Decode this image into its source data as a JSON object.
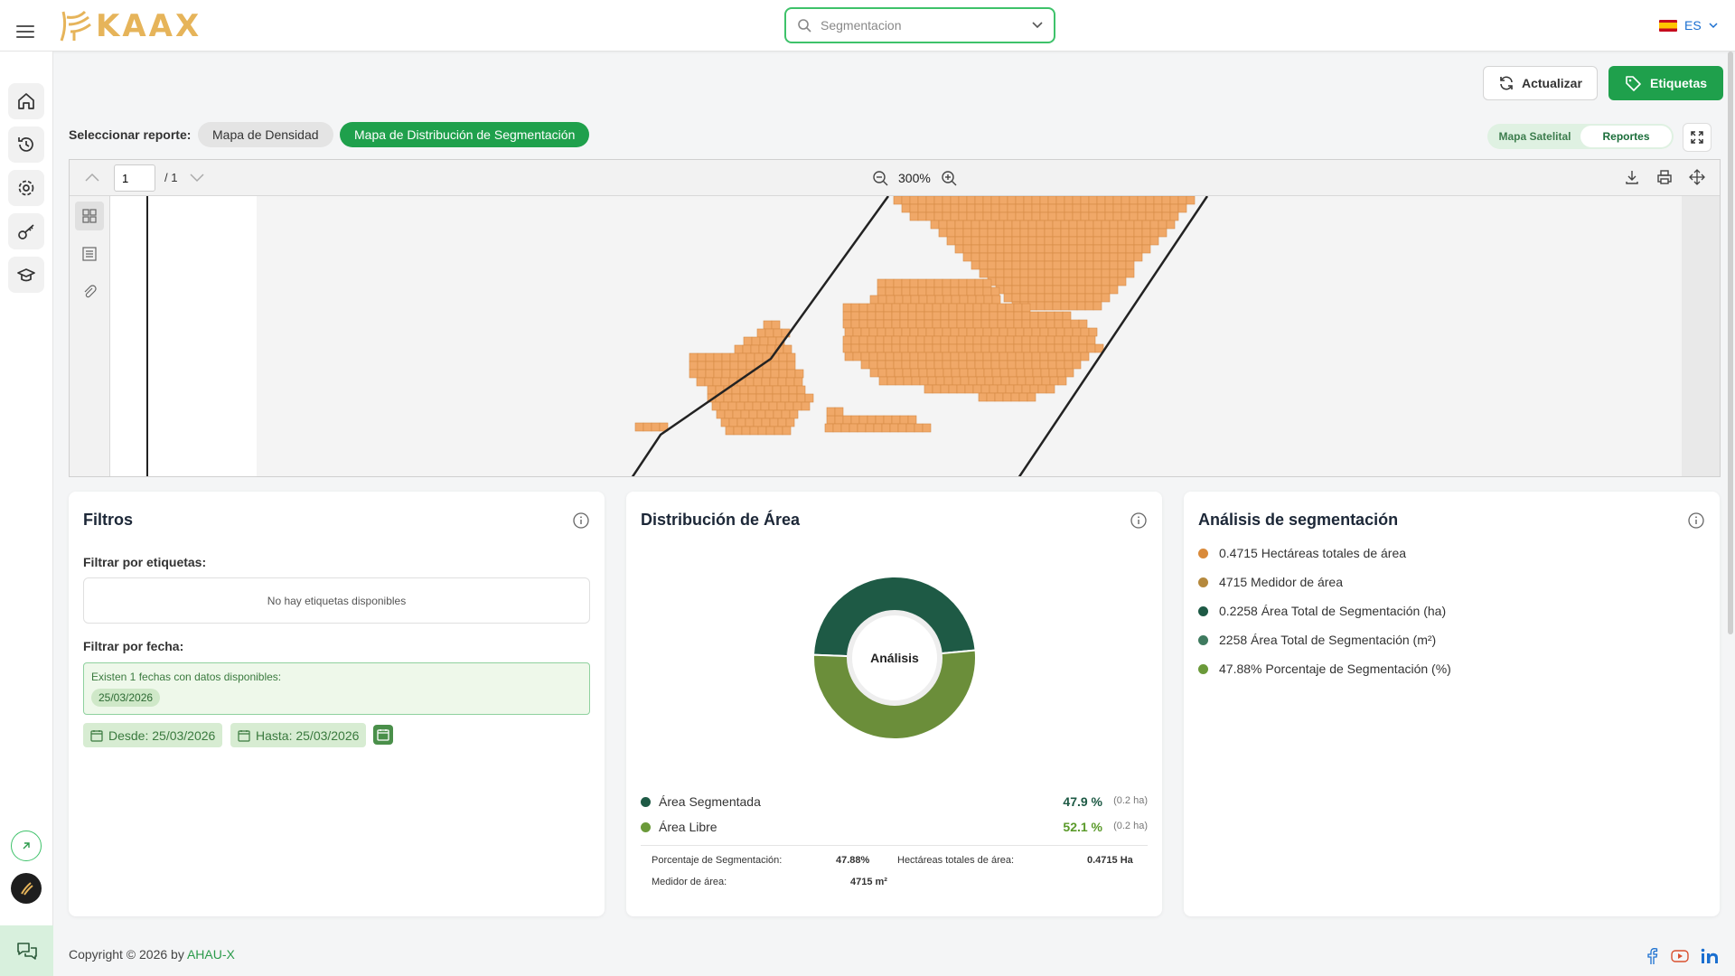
{
  "header": {
    "logo_text": "KAAX",
    "search_placeholder": "Segmentacion",
    "language": "ES"
  },
  "sidebar": {
    "items": [
      {
        "icon": "home-icon"
      },
      {
        "icon": "history-icon"
      },
      {
        "icon": "gear-icon"
      },
      {
        "icon": "key-icon"
      },
      {
        "icon": "graduation-cap-icon"
      }
    ]
  },
  "toolbar": {
    "update_label": "Actualizar",
    "labels_label": "Etiquetas"
  },
  "report_selector": {
    "label": "Seleccionar reporte:",
    "options": [
      "Mapa de Densidad",
      "Mapa de Distribución de Segmentación"
    ],
    "selected": "Mapa de Distribución de Segmentación"
  },
  "view_toggle": {
    "options": [
      "Mapa Satelital",
      "Reportes"
    ],
    "selected": "Reportes"
  },
  "pdf_viewer": {
    "page": "1",
    "total_pages": "/ 1",
    "zoom": "300%"
  },
  "filters": {
    "title": "Filtros",
    "tags_label": "Filtrar por etiquetas:",
    "no_tags": "No hay etiquetas disponibles",
    "date_label": "Filtrar por fecha:",
    "dates_info": "Existen 1 fechas con datos disponibles:",
    "available_date": "25/03/2026",
    "from": "Desde: 25/03/2026",
    "to": "Hasta: 25/03/2026"
  },
  "distribution": {
    "title": "Distribución de Área",
    "center_label": "Análisis",
    "legend": [
      {
        "name": "Área Segmentada",
        "pct": "47.9 %",
        "ha": "(0.2 ha)",
        "color": "#1e5a45"
      },
      {
        "name": "Área Libre",
        "pct": "52.1 %",
        "ha": "(0.2 ha)",
        "color": "#6b8e3a"
      }
    ],
    "stats": {
      "seg_pct_label": "Porcentaje de Segmentación:",
      "seg_pct_value": "47.88%",
      "total_ha_label": "Hectáreas totales de área:",
      "total_ha_value": "0.4715 Ha",
      "meter_label": "Medidor de área:",
      "meter_value": "4715 m²"
    }
  },
  "chart_data": {
    "type": "pie",
    "categories": [
      "Área Segmentada",
      "Área Libre"
    ],
    "values": [
      47.9,
      52.1
    ],
    "colors": [
      "#1e5a45",
      "#6b8e3a"
    ],
    "title": "Distribución de Área"
  },
  "analysis": {
    "title": "Análisis de segmentación",
    "items": [
      {
        "text": "0.4715 Hectáreas totales de área",
        "color": "#d98a3a"
      },
      {
        "text": "4715 Medidor de área",
        "color": "#b5893d"
      },
      {
        "text": "0.2258 Área Total de Segmentación (ha)",
        "color": "#1e5a45"
      },
      {
        "text": "2258 Área Total de Segmentación (m²)",
        "color": "#3f7a5f"
      },
      {
        "text": "47.88% Porcentaje de Segmentación (%)",
        "color": "#6b9a3a"
      }
    ]
  },
  "footer": {
    "copyright": "Copyright © 2026 by ",
    "company": "AHAU-X"
  },
  "colors": {
    "accent": "#1fa04c",
    "segment_cells": "#f0a868"
  }
}
